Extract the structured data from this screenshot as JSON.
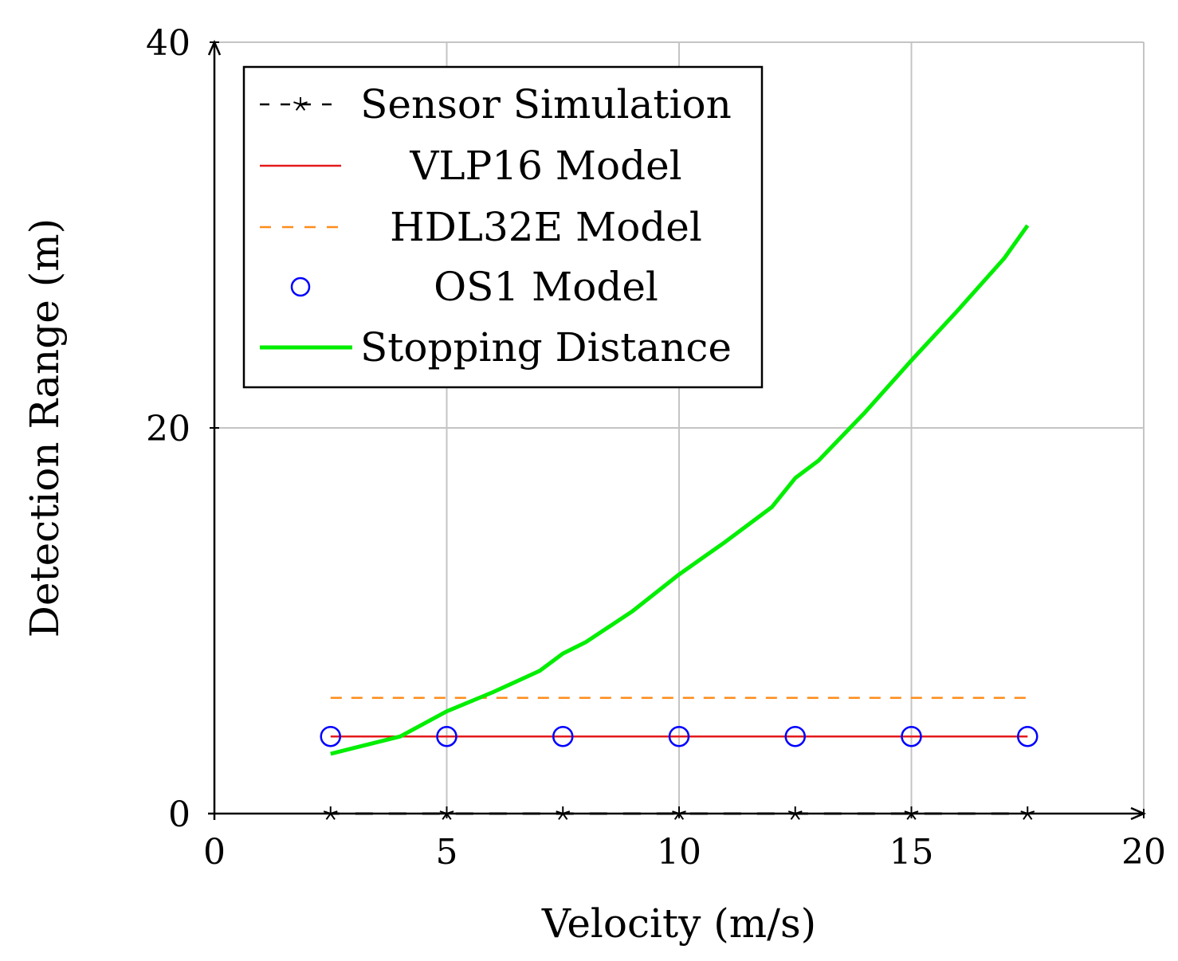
{
  "chart_data": {
    "type": "line",
    "xlabel": "Velocity (m/s)",
    "ylabel": "Detection Range (m)",
    "xlim": [
      0,
      20
    ],
    "ylim": [
      0,
      40
    ],
    "xticks": [
      0,
      5,
      10,
      15,
      20
    ],
    "yticks": [
      0,
      20,
      40
    ],
    "grid": true,
    "legend_position": "top-left",
    "series": [
      {
        "name": "Sensor Simulation",
        "style": "dashed-star",
        "color": "#000000",
        "x": [
          2.5,
          5,
          7.5,
          10,
          12.5,
          15,
          17.5
        ],
        "y": [
          0,
          0,
          0,
          0,
          0,
          0,
          0
        ]
      },
      {
        "name": "VLP16 Model",
        "style": "solid",
        "color": "#e41a1c",
        "x": [
          2.5,
          17.5
        ],
        "y": [
          4.0,
          4.0
        ]
      },
      {
        "name": "HDL32E Model",
        "style": "dashed",
        "color": "#ff8c1a",
        "x": [
          2.5,
          17.5
        ],
        "y": [
          6.0,
          6.0
        ]
      },
      {
        "name": "OS1 Model",
        "style": "circle-marker",
        "color": "#0000ff",
        "x": [
          2.5,
          5,
          7.5,
          10,
          12.5,
          15,
          17.5
        ],
        "y": [
          4.0,
          4.0,
          4.0,
          4.0,
          4.0,
          4.0,
          4.0
        ]
      },
      {
        "name": "Stopping Distance",
        "style": "thick-solid",
        "color": "#00ee00",
        "x": [
          2.5,
          3,
          4,
          5,
          6,
          7,
          7.5,
          8,
          9,
          10,
          11,
          12,
          12.5,
          13,
          14,
          15,
          16,
          17,
          17.5
        ],
        "y": [
          3.1,
          3.4,
          4.0,
          5.3,
          6.3,
          7.4,
          8.3,
          8.9,
          10.5,
          12.4,
          14.1,
          15.9,
          17.4,
          18.3,
          20.8,
          23.5,
          26.1,
          28.8,
          30.5
        ]
      }
    ]
  }
}
